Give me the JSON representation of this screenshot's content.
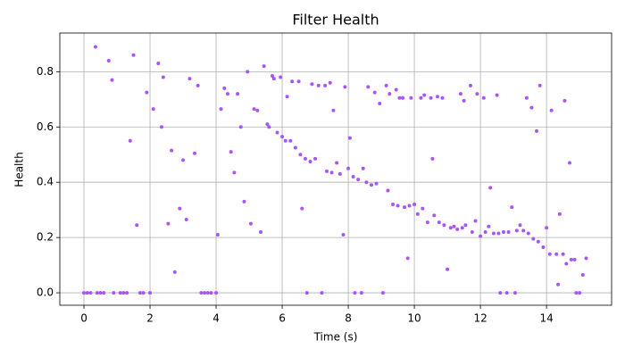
{
  "chart_data": {
    "type": "scatter",
    "title": "Filter Health",
    "x_label": "Time (s)",
    "y_label": "Health",
    "color": "#a855f7",
    "grid": true,
    "xlim": [
      -0.73,
      15.97
    ],
    "ylim": [
      -0.045,
      0.94
    ],
    "xticks": [
      0,
      2,
      4,
      6,
      8,
      10,
      12,
      14
    ],
    "yticks": [
      {
        "value": 0,
        "label": "0.0"
      },
      0.2,
      0.4,
      0.6,
      0.8
    ],
    "x": [
      0,
      0.1,
      0.2,
      0.4,
      0.5,
      0.6,
      0.9,
      1.1,
      1.2,
      1.3,
      1.7,
      1.8,
      2.0,
      0.35,
      0.75,
      0.85,
      1.4,
      1.5,
      1.6,
      1.9,
      2.1,
      2.25,
      2.35,
      2.4,
      2.55,
      2.65,
      2.75,
      2.9,
      3.0,
      3.1,
      3.2,
      3.35,
      3.45,
      3.55,
      3.65,
      3.75,
      3.85,
      4.0,
      4.05,
      4.15,
      4.25,
      4.35,
      4.45,
      4.55,
      4.65,
      4.75,
      4.85,
      4.95,
      5.05,
      5.15,
      5.25,
      5.35,
      5.45,
      5.55,
      5.6,
      5.7,
      5.75,
      5.85,
      5.95,
      6.0,
      6.1,
      6.15,
      6.25,
      6.3,
      6.4,
      6.5,
      6.55,
      6.6,
      6.7,
      6.75,
      6.85,
      6.9,
      7.0,
      7.1,
      7.2,
      7.3,
      7.35,
      7.45,
      7.5,
      7.55,
      7.65,
      7.75,
      7.85,
      7.9,
      8.0,
      8.05,
      8.15,
      8.2,
      8.3,
      8.4,
      8.45,
      8.55,
      8.6,
      8.7,
      8.8,
      8.85,
      8.95,
      9.05,
      9.15,
      9.2,
      9.25,
      9.35,
      9.45,
      9.5,
      9.55,
      9.65,
      9.7,
      9.8,
      9.85,
      9.9,
      10.0,
      10.1,
      10.2,
      10.25,
      10.3,
      10.4,
      10.5,
      10.55,
      10.6,
      10.7,
      10.75,
      10.85,
      10.9,
      11.0,
      11.1,
      11.2,
      11.3,
      11.4,
      11.45,
      11.5,
      11.55,
      11.7,
      11.75,
      11.85,
      11.9,
      12.0,
      12.1,
      12.15,
      12.25,
      12.3,
      12.4,
      12.5,
      12.55,
      12.6,
      12.7,
      12.8,
      12.85,
      12.95,
      13.05,
      13.1,
      13.2,
      13.3,
      13.4,
      13.45,
      13.55,
      13.6,
      13.7,
      13.75,
      13.8,
      13.9,
      14.0,
      14.1,
      14.15,
      14.3,
      14.35,
      14.4,
      14.5,
      14.55,
      14.6,
      14.7,
      14.75,
      14.85,
      14.9,
      15.0,
      15.1,
      15.2
    ],
    "values": [
      0,
      0,
      0,
      0,
      0,
      0,
      0,
      0,
      0,
      0,
      0,
      0,
      0,
      0.89,
      0.84,
      0.77,
      0.55,
      0.86,
      0.245,
      0.725,
      0.665,
      0.83,
      0.6,
      0.78,
      0.25,
      0.515,
      0.075,
      0.305,
      0.48,
      0.265,
      0.775,
      0.505,
      0.75,
      0,
      0,
      0,
      0,
      0,
      0.21,
      0.665,
      0.74,
      0.72,
      0.51,
      0.435,
      0.72,
      0.6,
      0.33,
      0.8,
      0.25,
      0.665,
      0.66,
      0.22,
      0.82,
      0.61,
      0.6,
      0.785,
      0.775,
      0.58,
      0.78,
      0.565,
      0.55,
      0.71,
      0.55,
      0.765,
      0.525,
      0.765,
      0.5,
      0.305,
      0.485,
      0,
      0.475,
      0.755,
      0.485,
      0.75,
      0,
      0.75,
      0.44,
      0.76,
      0.435,
      0.66,
      0.47,
      0.43,
      0.21,
      0.745,
      0.45,
      0.56,
      0.42,
      0,
      0.41,
      0,
      0.45,
      0.4,
      0.745,
      0.39,
      0.725,
      0.395,
      0.685,
      0,
      0.75,
      0.37,
      0.72,
      0.32,
      0.735,
      0.315,
      0.705,
      0.705,
      0.31,
      0.125,
      0.315,
      0.705,
      0.32,
      0.285,
      0.705,
      0.305,
      0.715,
      0.255,
      0.705,
      0.485,
      0.28,
      0.71,
      0.255,
      0.705,
      0.245,
      0.085,
      0.235,
      0.24,
      0.23,
      0.72,
      0.235,
      0.695,
      0.245,
      0.75,
      0.22,
      0.26,
      0.72,
      0.205,
      0.705,
      0.22,
      0.24,
      0.38,
      0.215,
      0.715,
      0.215,
      0,
      0.22,
      0,
      0.22,
      0.31,
      0,
      0.225,
      0.245,
      0.225,
      0.705,
      0.215,
      0.67,
      0.195,
      0.585,
      0.185,
      0.75,
      0.165,
      0.235,
      0.14,
      0.66,
      0.14,
      0.03,
      0.285,
      0.14,
      0.695,
      0.105,
      0.47,
      0.12,
      0.12,
      0,
      0,
      0.065,
      0.125
    ]
  }
}
